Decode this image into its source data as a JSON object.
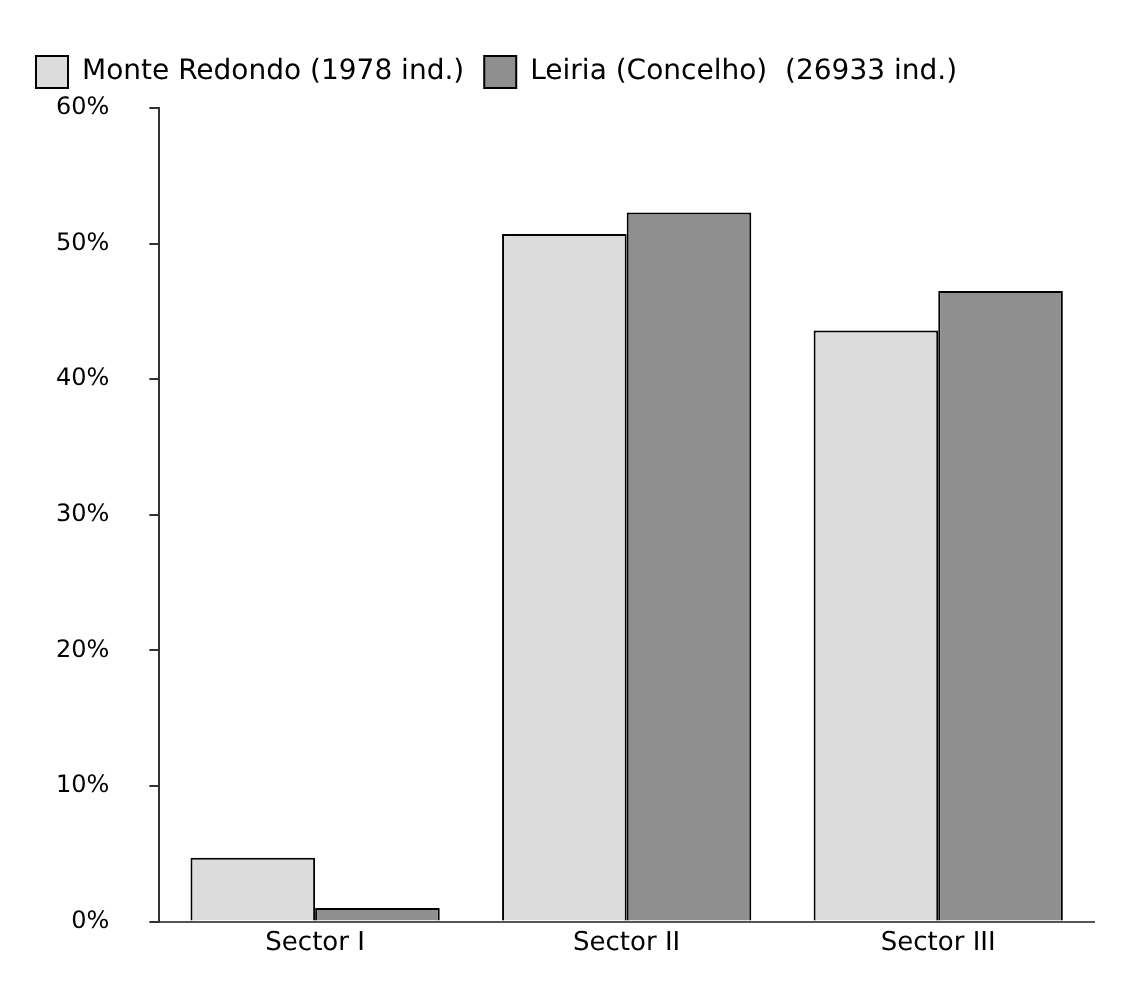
{
  "chart_data": {
    "type": "bar",
    "categories": [
      "Sector I",
      "Sector II",
      "Sector III"
    ],
    "series": [
      {
        "name": "Monte Redondo (1978 ind.)",
        "color": "#dcdcdc",
        "values": [
          4.7,
          50.7,
          43.6
        ]
      },
      {
        "name": "Leiria (Concelho)  (26933 ind.)",
        "color": "#8f8f8f",
        "values": [
          1.0,
          52.3,
          46.5
        ]
      }
    ],
    "ylim": [
      0,
      60
    ],
    "yticks": [
      {
        "value": 0,
        "label": "0%"
      },
      {
        "value": 10,
        "label": "10%"
      },
      {
        "value": 20,
        "label": "20%"
      },
      {
        "value": 30,
        "label": "30%"
      },
      {
        "value": 40,
        "label": "40%"
      },
      {
        "value": 50,
        "label": "50%"
      },
      {
        "value": 60,
        "label": "60%"
      }
    ],
    "grid": false,
    "legend": "top left"
  }
}
